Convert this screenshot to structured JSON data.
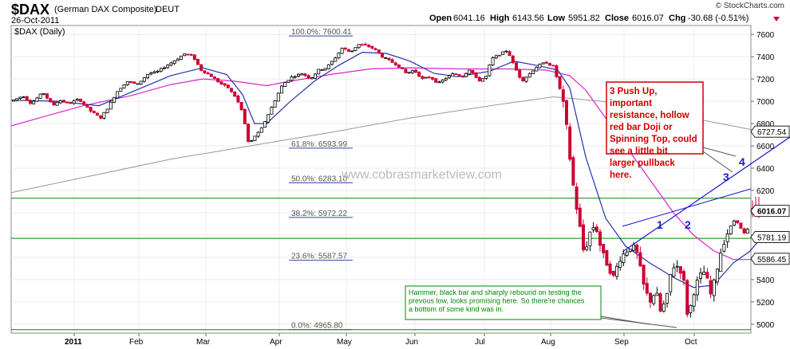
{
  "header": {
    "symbol": "$DAX",
    "name": "(German DAX Composite)",
    "exchange": "DEUT",
    "date": "26-Oct-2011",
    "source": "© StockCharts.com",
    "open_label": "Open",
    "open": "6041.16",
    "high_label": "High",
    "high": "6143.56",
    "low_label": "Low",
    "low": "5951.82",
    "close_label": "Close",
    "close": "6016.07",
    "chg_label": "Chg",
    "chg": "-30.68 (-0.51%)"
  },
  "panel_label": "$DAX (Daily)",
  "watermark": "www.cobrasmarketview.com",
  "colors": {
    "up": "#000000",
    "down": "#cc0033",
    "ma_short": "#2233aa",
    "ma_mid": "#dd22cc",
    "ma_long": "#999999",
    "support": "#008800",
    "annotation_red": "#cc0000",
    "annotation_green": "#008800",
    "wave": "#1a1acc",
    "fib": "#3344aa"
  },
  "chart_data": {
    "type": "candlestick",
    "ylim": [
      4920,
      7680
    ],
    "y_ticks": [
      "7600",
      "7400",
      "7200",
      "7000",
      "6800",
      "6600",
      "6400",
      "6200",
      "6000",
      "5800",
      "5600",
      "5400",
      "5200",
      "5000"
    ],
    "x_ticks": [
      "2011",
      "Feb",
      "Mar",
      "Apr",
      "May",
      "Jun",
      "Jul",
      "Aug",
      "Sep",
      "Oct"
    ],
    "price_tags": [
      {
        "label": "6727.54",
        "value": 6727.54,
        "bold": false
      },
      {
        "label": "6016.07",
        "value": 6016.07,
        "bold": true
      },
      {
        "label": "5781.19",
        "value": 5781.19,
        "bold": false
      },
      {
        "label": "5586.45",
        "value": 5586.45,
        "bold": false
      }
    ],
    "fib_levels": [
      {
        "label": "100.0%: 7600.41",
        "value": 7600.41
      },
      {
        "label": "61.8%: 6593.99",
        "value": 6593.99
      },
      {
        "label": "50.0%: 6283.10",
        "value": 6283.1
      },
      {
        "label": "38.2%: 5972.22",
        "value": 5972.22
      },
      {
        "label": "23.6%: 5587.57",
        "value": 5587.57
      },
      {
        "label": "0.0%: 4965.80",
        "value": 4965.8
      }
    ],
    "support_lines": [
      6130,
      5770,
      4950
    ],
    "annotations": [
      {
        "text": "3 Push Up, important resistance, hollow red bar Doji or Spinning Top, could see a little bit larger pullback here.",
        "color": "red"
      },
      {
        "text": "Hammer, black bar and sharply rebound on testing the prevous low, looks promising here. So there're chances a bottom of some kind was in.",
        "color": "green"
      }
    ],
    "wave_labels": [
      "1",
      "2",
      "3",
      "4"
    ],
    "price_path": [
      [
        0,
        7000
      ],
      [
        15,
        7050
      ],
      [
        25,
        6980
      ],
      [
        40,
        7080
      ],
      [
        52,
        6960
      ],
      [
        60,
        7010
      ],
      [
        72,
        6980
      ],
      [
        85,
        7020
      ],
      [
        98,
        6920
      ],
      [
        112,
        6850
      ],
      [
        122,
        6950
      ],
      [
        132,
        7080
      ],
      [
        145,
        7180
      ],
      [
        158,
        7150
      ],
      [
        172,
        7250
      ],
      [
        182,
        7260
      ],
      [
        195,
        7320
      ],
      [
        208,
        7380
      ],
      [
        218,
        7430
      ],
      [
        228,
        7400
      ],
      [
        238,
        7280
      ],
      [
        250,
        7230
      ],
      [
        262,
        7160
      ],
      [
        272,
        7120
      ],
      [
        282,
        7030
      ],
      [
        290,
        6900
      ],
      [
        298,
        6600
      ],
      [
        304,
        6680
      ],
      [
        312,
        6730
      ],
      [
        320,
        6850
      ],
      [
        330,
        7000
      ],
      [
        340,
        7150
      ],
      [
        352,
        7220
      ],
      [
        365,
        7250
      ],
      [
        375,
        7200
      ],
      [
        385,
        7280
      ],
      [
        395,
        7300
      ],
      [
        405,
        7380
      ],
      [
        415,
        7480
      ],
      [
        425,
        7440
      ],
      [
        435,
        7510
      ],
      [
        445,
        7500
      ],
      [
        455,
        7470
      ],
      [
        465,
        7400
      ],
      [
        475,
        7360
      ],
      [
        485,
        7320
      ],
      [
        495,
        7250
      ],
      [
        505,
        7280
      ],
      [
        515,
        7200
      ],
      [
        525,
        7220
      ],
      [
        535,
        7160
      ],
      [
        545,
        7210
      ],
      [
        555,
        7250
      ],
      [
        565,
        7220
      ],
      [
        575,
        7290
      ],
      [
        585,
        7180
      ],
      [
        595,
        7220
      ],
      [
        602,
        7380
      ],
      [
        612,
        7420
      ],
      [
        622,
        7460
      ],
      [
        630,
        7320
      ],
      [
        640,
        7180
      ],
      [
        650,
        7250
      ],
      [
        660,
        7320
      ],
      [
        670,
        7350
      ],
      [
        680,
        7310
      ],
      [
        688,
        7100
      ],
      [
        694,
        6900
      ],
      [
        700,
        6500
      ],
      [
        706,
        6150
      ],
      [
        712,
        5900
      ],
      [
        718,
        5620
      ],
      [
        725,
        5820
      ],
      [
        732,
        5900
      ],
      [
        740,
        5650
      ],
      [
        748,
        5520
      ],
      [
        755,
        5420
      ],
      [
        762,
        5580
      ],
      [
        770,
        5650
      ],
      [
        778,
        5710
      ],
      [
        785,
        5620
      ],
      [
        792,
        5360
      ],
      [
        800,
        5200
      ],
      [
        808,
        5300
      ],
      [
        814,
        5100
      ],
      [
        822,
        5250
      ],
      [
        828,
        5520
      ],
      [
        836,
        5520
      ],
      [
        842,
        5440
      ],
      [
        848,
        5050
      ],
      [
        855,
        5280
      ],
      [
        862,
        5420
      ],
      [
        870,
        5480
      ],
      [
        876,
        5250
      ],
      [
        882,
        5400
      ],
      [
        888,
        5620
      ],
      [
        895,
        5780
      ],
      [
        902,
        5880
      ],
      [
        908,
        5950
      ],
      [
        914,
        5860
      ],
      [
        920,
        5800
      ],
      [
        926,
        5900
      ],
      [
        932,
        6020
      ],
      [
        938,
        6050
      ],
      [
        941,
        6016
      ]
    ],
    "ma_short": [
      [
        0,
        7010
      ],
      [
        60,
        7000
      ],
      [
        110,
        6960
      ],
      [
        150,
        7080
      ],
      [
        200,
        7230
      ],
      [
        240,
        7300
      ],
      [
        270,
        7240
      ],
      [
        290,
        7060
      ],
      [
        305,
        6800
      ],
      [
        320,
        6800
      ],
      [
        350,
        7000
      ],
      [
        380,
        7180
      ],
      [
        410,
        7320
      ],
      [
        440,
        7440
      ],
      [
        470,
        7430
      ],
      [
        500,
        7360
      ],
      [
        530,
        7250
      ],
      [
        560,
        7220
      ],
      [
        600,
        7270
      ],
      [
        630,
        7360
      ],
      [
        660,
        7320
      ],
      [
        685,
        7280
      ],
      [
        700,
        7120
      ],
      [
        720,
        6500
      ],
      [
        745,
        5950
      ],
      [
        770,
        5700
      ],
      [
        800,
        5550
      ],
      [
        830,
        5420
      ],
      [
        855,
        5330
      ],
      [
        880,
        5350
      ],
      [
        905,
        5550
      ],
      [
        925,
        5650
      ],
      [
        941,
        5781
      ]
    ],
    "ma_mid": [
      [
        0,
        6780
      ],
      [
        40,
        6860
      ],
      [
        90,
        6960
      ],
      [
        150,
        7050
      ],
      [
        200,
        7150
      ],
      [
        240,
        7200
      ],
      [
        280,
        7180
      ],
      [
        320,
        7140
      ],
      [
        350,
        7180
      ],
      [
        400,
        7240
      ],
      [
        450,
        7290
      ],
      [
        500,
        7300
      ],
      [
        560,
        7290
      ],
      [
        620,
        7290
      ],
      [
        670,
        7280
      ],
      [
        700,
        7230
      ],
      [
        720,
        7100
      ],
      [
        745,
        6850
      ],
      [
        770,
        6600
      ],
      [
        800,
        6300
      ],
      [
        830,
        6000
      ],
      [
        855,
        5800
      ],
      [
        880,
        5660
      ],
      [
        905,
        5580
      ],
      [
        925,
        5580
      ],
      [
        941,
        5586
      ]
    ],
    "ma_long": [
      [
        0,
        6180
      ],
      [
        100,
        6330
      ],
      [
        200,
        6480
      ],
      [
        300,
        6600
      ],
      [
        400,
        6720
      ],
      [
        500,
        6850
      ],
      [
        600,
        6960
      ],
      [
        680,
        7040
      ],
      [
        740,
        7000
      ],
      [
        800,
        6920
      ],
      [
        860,
        6840
      ],
      [
        941,
        6727
      ]
    ]
  }
}
